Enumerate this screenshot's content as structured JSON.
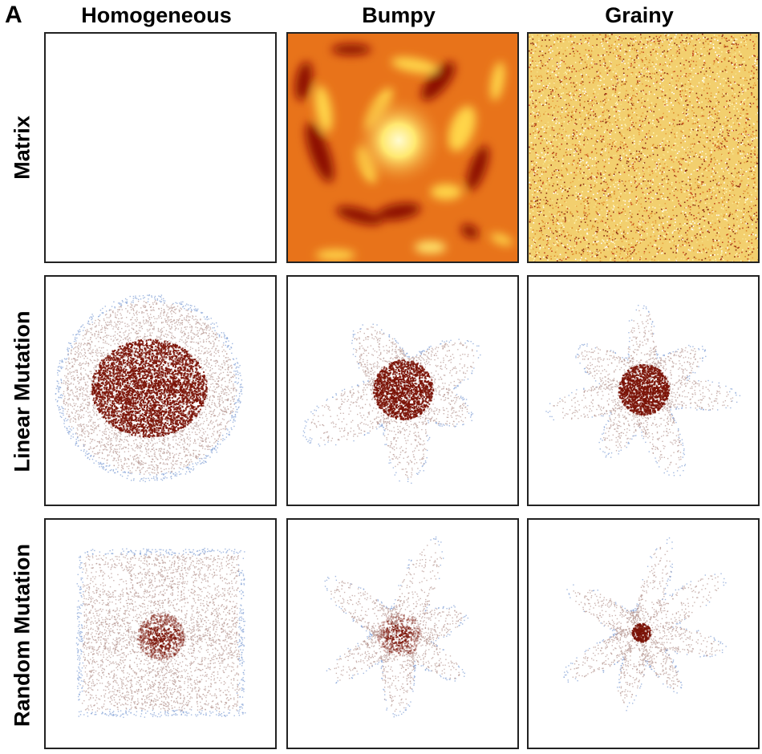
{
  "figure": {
    "panel_letter": "A",
    "columns": [
      "Homogeneous",
      "Bumpy",
      "Grainy"
    ],
    "rows": [
      "Matrix",
      "Linear Mutation",
      "Random Mutation"
    ]
  },
  "colors": {
    "core": "#7a1206",
    "halo": "#b89a94",
    "edge": "#8aa6d8",
    "frame": "#222222",
    "bumpy_low": "#8b0a00",
    "bumpy_mid": "#e8731a",
    "bumpy_high": "#fffbd0",
    "grainy_base": "#f2cf6e"
  }
}
